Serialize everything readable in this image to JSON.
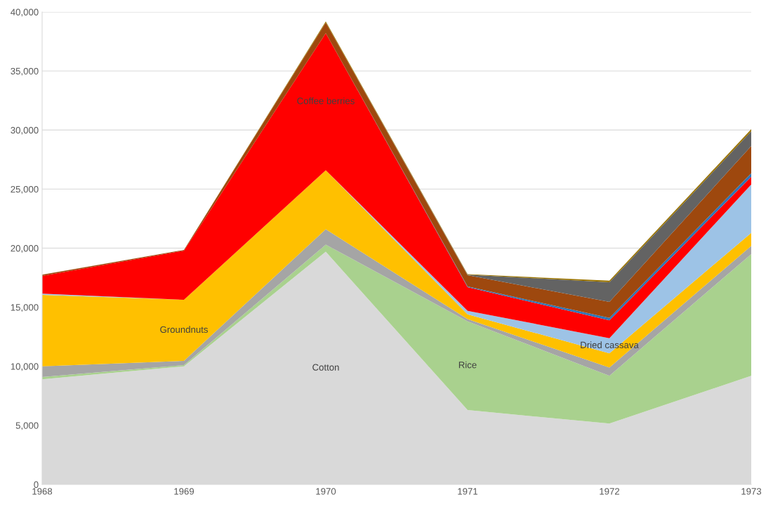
{
  "chart_data": {
    "type": "area",
    "stacked": true,
    "x": [
      1968,
      1969,
      1970,
      1971,
      1972,
      1973
    ],
    "series": [
      {
        "name": "Cotton",
        "color": "#d9d9d9",
        "values": [
          8900,
          10000,
          19700,
          6300,
          5150,
          9200
        ]
      },
      {
        "name": "Rice",
        "color": "#a9d18e",
        "values": [
          200,
          100,
          600,
          7500,
          4050,
          10300
        ]
      },
      {
        "color": "#a5a5a5",
        "values": [
          900,
          360,
          1300,
          200,
          700,
          700
        ]
      },
      {
        "name": "Groundnuts",
        "color": "#ffc000",
        "values": [
          6050,
          5170,
          5000,
          400,
          1200,
          1100
        ]
      },
      {
        "name": "Dried cassava",
        "color": "#9dc3e6",
        "values": [
          100,
          0,
          0,
          300,
          1280,
          4100
        ]
      },
      {
        "name": "Coffee berries",
        "color": "#ff0000",
        "values": [
          1500,
          4160,
          11600,
          2000,
          1520,
          650
        ]
      },
      {
        "color": "#2e75b6",
        "values": [
          0,
          0,
          0,
          60,
          200,
          300
        ]
      },
      {
        "color": "#9e480e",
        "values": [
          100,
          60,
          900,
          950,
          1350,
          2300
        ]
      },
      {
        "color": "#636363",
        "values": [
          0,
          0,
          0,
          50,
          1670,
          1250
        ]
      },
      {
        "color": "#997300",
        "values": [
          0,
          0,
          100,
          40,
          130,
          170
        ]
      }
    ],
    "xlim": [
      1968,
      1973
    ],
    "xticks": [
      1968,
      1969,
      1970,
      1971,
      1972,
      1973
    ],
    "ylim": [
      0,
      40000
    ],
    "yticks": [
      0,
      {
        "value": 5000,
        "label": "5,000"
      },
      {
        "value": 10000,
        "label": "10,000"
      },
      {
        "value": 15000,
        "label": "15,000"
      },
      {
        "value": 20000,
        "label": "20,000"
      },
      {
        "value": 25000,
        "label": "25,000"
      },
      {
        "value": 30000,
        "label": "30,000"
      },
      {
        "value": 35000,
        "label": "35,000"
      },
      {
        "value": 40000,
        "label": "40,000"
      }
    ],
    "grid": "y",
    "legend": false
  }
}
